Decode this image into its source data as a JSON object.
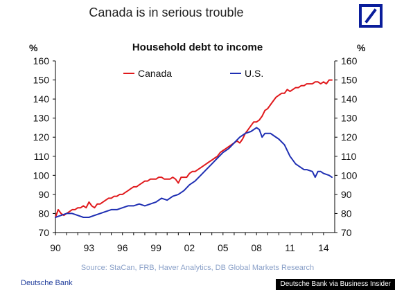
{
  "headline": "Canada is in serious trouble",
  "logo": {
    "name": "deutsche-bank-slash-logo",
    "color": "#0a1d9b"
  },
  "source_text": "Source: StaCan, FRB, Haver Analytics, DB Global Markets Research",
  "footer_brand": "Deutsche Bank",
  "credit": "Deutsche Bank via Business Insider",
  "chart_data": {
    "type": "line",
    "title": "Household debt to income",
    "ylabel_left": "%",
    "ylabel_right": "%",
    "xlim": [
      1990,
      2015
    ],
    "ylim": [
      70,
      160
    ],
    "x_ticks": [
      1990,
      1993,
      1996,
      1999,
      2002,
      2005,
      2008,
      2011,
      2014
    ],
    "x_tick_labels": [
      "90",
      "93",
      "96",
      "99",
      "02",
      "05",
      "08",
      "11",
      "14"
    ],
    "y_ticks": [
      70,
      80,
      90,
      100,
      110,
      120,
      130,
      140,
      150,
      160
    ],
    "grid": false,
    "legend_position": "top",
    "series": [
      {
        "name": "Canada",
        "color": "#e0191c",
        "points": [
          [
            1990.0,
            78
          ],
          [
            1990.25,
            82
          ],
          [
            1990.5,
            80
          ],
          [
            1990.75,
            79
          ],
          [
            1991.0,
            80
          ],
          [
            1991.25,
            81
          ],
          [
            1991.5,
            82
          ],
          [
            1991.75,
            82
          ],
          [
            1992.0,
            83
          ],
          [
            1992.25,
            83
          ],
          [
            1992.5,
            84
          ],
          [
            1992.75,
            83
          ],
          [
            1993.0,
            86
          ],
          [
            1993.25,
            84
          ],
          [
            1993.5,
            83
          ],
          [
            1993.75,
            85
          ],
          [
            1994.0,
            85
          ],
          [
            1994.25,
            86
          ],
          [
            1994.5,
            87
          ],
          [
            1994.75,
            88
          ],
          [
            1995.0,
            88
          ],
          [
            1995.25,
            89
          ],
          [
            1995.5,
            89
          ],
          [
            1995.75,
            90
          ],
          [
            1996.0,
            90
          ],
          [
            1996.25,
            91
          ],
          [
            1996.5,
            92
          ],
          [
            1996.75,
            93
          ],
          [
            1997.0,
            94
          ],
          [
            1997.25,
            94
          ],
          [
            1997.5,
            95
          ],
          [
            1997.75,
            96
          ],
          [
            1998.0,
            97
          ],
          [
            1998.25,
            97
          ],
          [
            1998.5,
            98
          ],
          [
            1998.75,
            98
          ],
          [
            1999.0,
            98
          ],
          [
            1999.25,
            99
          ],
          [
            1999.5,
            99
          ],
          [
            1999.75,
            98
          ],
          [
            2000.0,
            98
          ],
          [
            2000.25,
            98
          ],
          [
            2000.5,
            99
          ],
          [
            2000.75,
            98
          ],
          [
            2001.0,
            96
          ],
          [
            2001.25,
            99
          ],
          [
            2001.5,
            99
          ],
          [
            2001.75,
            99
          ],
          [
            2002.0,
            101
          ],
          [
            2002.25,
            102
          ],
          [
            2002.5,
            102
          ],
          [
            2002.75,
            103
          ],
          [
            2003.0,
            104
          ],
          [
            2003.25,
            105
          ],
          [
            2003.5,
            106
          ],
          [
            2003.75,
            107
          ],
          [
            2004.0,
            108
          ],
          [
            2004.25,
            109
          ],
          [
            2004.5,
            110
          ],
          [
            2004.75,
            112
          ],
          [
            2005.0,
            113
          ],
          [
            2005.25,
            114
          ],
          [
            2005.5,
            115
          ],
          [
            2005.75,
            116
          ],
          [
            2006.0,
            117
          ],
          [
            2006.25,
            118
          ],
          [
            2006.5,
            117
          ],
          [
            2006.75,
            119
          ],
          [
            2007.0,
            122
          ],
          [
            2007.25,
            124
          ],
          [
            2007.5,
            126
          ],
          [
            2007.75,
            128
          ],
          [
            2008.0,
            128
          ],
          [
            2008.25,
            129
          ],
          [
            2008.5,
            131
          ],
          [
            2008.75,
            134
          ],
          [
            2009.0,
            135
          ],
          [
            2009.25,
            137
          ],
          [
            2009.5,
            139
          ],
          [
            2009.75,
            141
          ],
          [
            2010.0,
            142
          ],
          [
            2010.25,
            143
          ],
          [
            2010.5,
            143
          ],
          [
            2010.75,
            145
          ],
          [
            2011.0,
            144
          ],
          [
            2011.25,
            145
          ],
          [
            2011.5,
            146
          ],
          [
            2011.75,
            146
          ],
          [
            2012.0,
            147
          ],
          [
            2012.25,
            147
          ],
          [
            2012.5,
            148
          ],
          [
            2012.75,
            148
          ],
          [
            2013.0,
            148
          ],
          [
            2013.25,
            149
          ],
          [
            2013.5,
            149
          ],
          [
            2013.75,
            148
          ],
          [
            2014.0,
            149
          ],
          [
            2014.25,
            148
          ],
          [
            2014.5,
            150
          ],
          [
            2014.75,
            150
          ]
        ]
      },
      {
        "name": "U.S.",
        "color": "#1f2fb3",
        "points": [
          [
            1990.0,
            78
          ],
          [
            1990.5,
            79
          ],
          [
            1991.0,
            80
          ],
          [
            1991.5,
            80
          ],
          [
            1992.0,
            79
          ],
          [
            1992.5,
            78
          ],
          [
            1993.0,
            78
          ],
          [
            1993.5,
            79
          ],
          [
            1994.0,
            80
          ],
          [
            1994.5,
            81
          ],
          [
            1995.0,
            82
          ],
          [
            1995.5,
            82
          ],
          [
            1996.0,
            83
          ],
          [
            1996.5,
            84
          ],
          [
            1997.0,
            84
          ],
          [
            1997.5,
            85
          ],
          [
            1998.0,
            84
          ],
          [
            1998.5,
            85
          ],
          [
            1999.0,
            86
          ],
          [
            1999.5,
            88
          ],
          [
            2000.0,
            87
          ],
          [
            2000.5,
            89
          ],
          [
            2001.0,
            90
          ],
          [
            2001.5,
            92
          ],
          [
            2002.0,
            95
          ],
          [
            2002.5,
            97
          ],
          [
            2003.0,
            100
          ],
          [
            2003.5,
            103
          ],
          [
            2004.0,
            106
          ],
          [
            2004.5,
            109
          ],
          [
            2005.0,
            112
          ],
          [
            2005.5,
            114
          ],
          [
            2006.0,
            117
          ],
          [
            2006.5,
            120
          ],
          [
            2007.0,
            122
          ],
          [
            2007.5,
            123
          ],
          [
            2008.0,
            125
          ],
          [
            2008.25,
            124
          ],
          [
            2008.5,
            120
          ],
          [
            2008.75,
            122
          ],
          [
            2009.0,
            122
          ],
          [
            2009.25,
            122
          ],
          [
            2009.5,
            121
          ],
          [
            2010.0,
            119
          ],
          [
            2010.5,
            116
          ],
          [
            2011.0,
            110
          ],
          [
            2011.5,
            106
          ],
          [
            2012.0,
            104
          ],
          [
            2012.25,
            103
          ],
          [
            2012.5,
            103
          ],
          [
            2013.0,
            102
          ],
          [
            2013.25,
            99
          ],
          [
            2013.5,
            102
          ],
          [
            2013.75,
            102
          ],
          [
            2014.0,
            101
          ],
          [
            2014.5,
            100
          ],
          [
            2014.75,
            99
          ]
        ]
      }
    ]
  }
}
